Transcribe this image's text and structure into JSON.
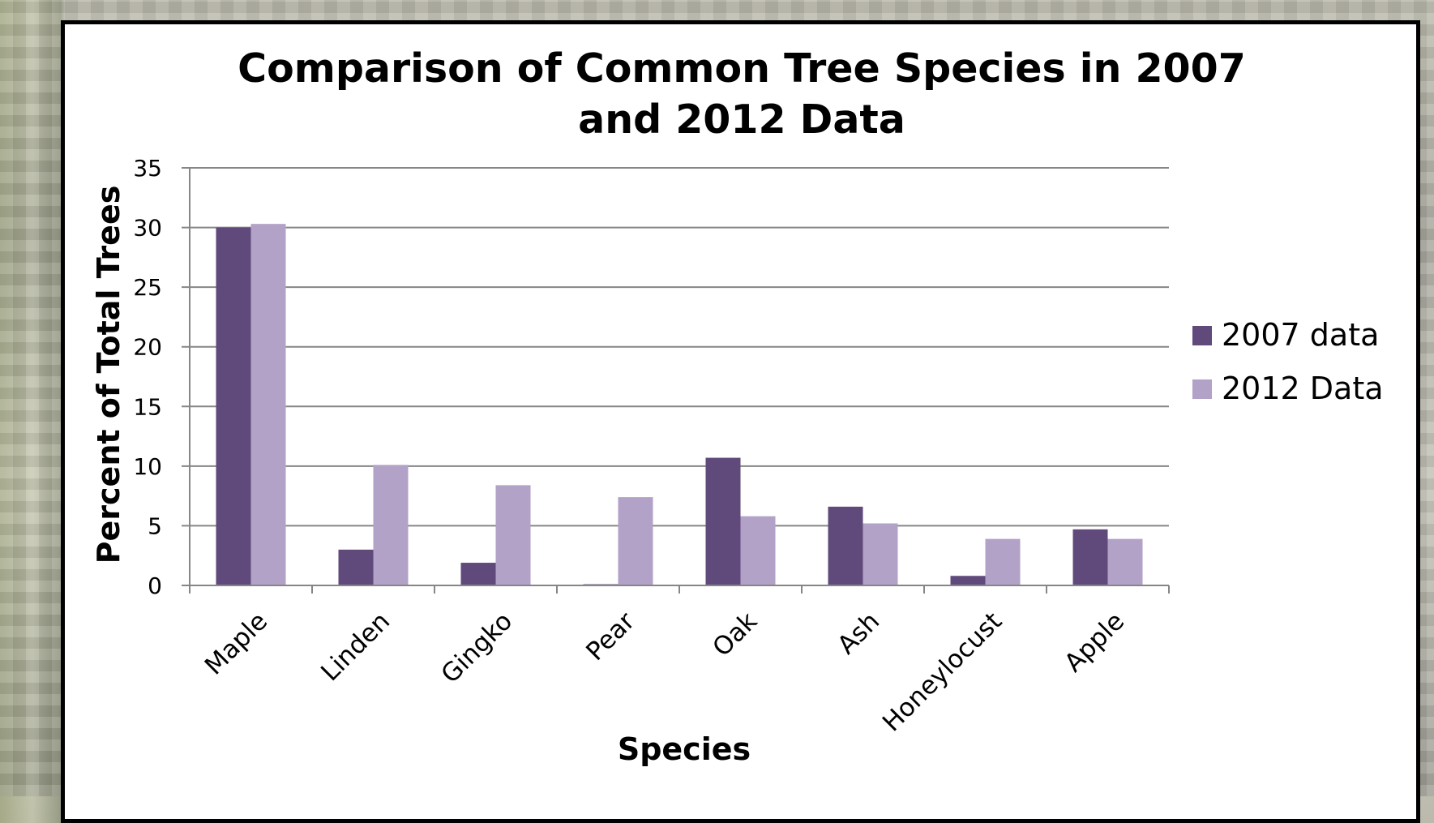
{
  "chart_data": {
    "type": "bar",
    "title_lines": [
      "Comparison of Common Tree Species in 2007",
      "and 2012 Data"
    ],
    "xlabel": "Species",
    "ylabel": "Percent of Total Trees",
    "ylim": [
      0,
      35
    ],
    "yticks": [
      "0",
      "5",
      "10",
      "15",
      "20",
      "25",
      "30",
      "35"
    ],
    "grid": true,
    "legend_position": "right",
    "categories": [
      "Maple",
      "Linden",
      "Gingko",
      "Pear",
      "Oak",
      "Ash",
      "Honeylocust",
      "Apple"
    ],
    "series": [
      {
        "name": "2007 data",
        "color": "#604a7b",
        "values": [
          30,
          3,
          1.9,
          0.1,
          10.7,
          6.6,
          0.8,
          4.7
        ]
      },
      {
        "name": "2012 Data",
        "color": "#b3a2c7",
        "values": [
          30.3,
          10.1,
          8.4,
          7.4,
          5.8,
          5.2,
          3.9,
          3.9
        ]
      }
    ]
  }
}
